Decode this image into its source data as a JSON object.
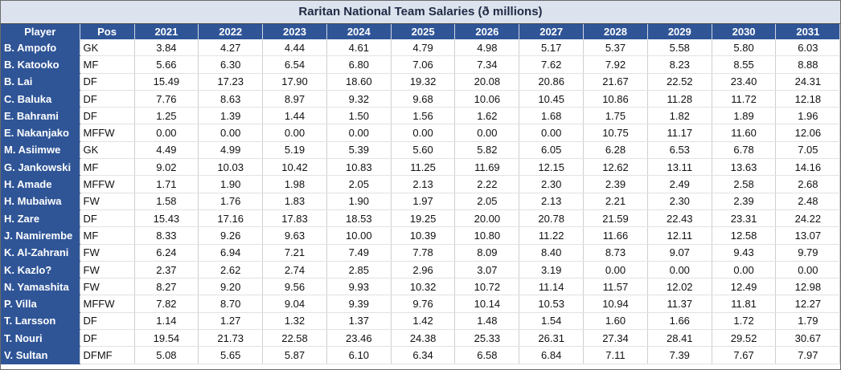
{
  "title": "Raritan National Team Salaries (ð millions)",
  "columns": [
    "Player",
    "Pos",
    "2021",
    "2022",
    "2023",
    "2024",
    "2025",
    "2026",
    "2027",
    "2028",
    "2029",
    "2030",
    "2031"
  ],
  "rows": [
    {
      "player": "B. Ampofo",
      "pos": "GK",
      "values": [
        "3.84",
        "4.27",
        "4.44",
        "4.61",
        "4.79",
        "4.98",
        "5.17",
        "5.37",
        "5.58",
        "5.80",
        "6.03"
      ]
    },
    {
      "player": "B. Katooko",
      "pos": "MF",
      "values": [
        "5.66",
        "6.30",
        "6.54",
        "6.80",
        "7.06",
        "7.34",
        "7.62",
        "7.92",
        "8.23",
        "8.55",
        "8.88"
      ]
    },
    {
      "player": "B. Lai",
      "pos": "DF",
      "values": [
        "15.49",
        "17.23",
        "17.90",
        "18.60",
        "19.32",
        "20.08",
        "20.86",
        "21.67",
        "22.52",
        "23.40",
        "24.31"
      ]
    },
    {
      "player": "C. Baluka",
      "pos": "DF",
      "values": [
        "7.76",
        "8.63",
        "8.97",
        "9.32",
        "9.68",
        "10.06",
        "10.45",
        "10.86",
        "11.28",
        "11.72",
        "12.18"
      ]
    },
    {
      "player": "E. Bahrami",
      "pos": "DF",
      "values": [
        "1.25",
        "1.39",
        "1.44",
        "1.50",
        "1.56",
        "1.62",
        "1.68",
        "1.75",
        "1.82",
        "1.89",
        "1.96"
      ]
    },
    {
      "player": "E. Nakanjako",
      "pos": "MFFW",
      "values": [
        "0.00",
        "0.00",
        "0.00",
        "0.00",
        "0.00",
        "0.00",
        "0.00",
        "10.75",
        "11.17",
        "11.60",
        "12.06"
      ]
    },
    {
      "player": "M. Asiimwe",
      "pos": "GK",
      "values": [
        "4.49",
        "4.99",
        "5.19",
        "5.39",
        "5.60",
        "5.82",
        "6.05",
        "6.28",
        "6.53",
        "6.78",
        "7.05"
      ]
    },
    {
      "player": "G. Jankowski",
      "pos": "MF",
      "values": [
        "9.02",
        "10.03",
        "10.42",
        "10.83",
        "11.25",
        "11.69",
        "12.15",
        "12.62",
        "13.11",
        "13.63",
        "14.16"
      ]
    },
    {
      "player": "H. Amade",
      "pos": "MFFW",
      "values": [
        "1.71",
        "1.90",
        "1.98",
        "2.05",
        "2.13",
        "2.22",
        "2.30",
        "2.39",
        "2.49",
        "2.58",
        "2.68"
      ]
    },
    {
      "player": "H. Mubaiwa",
      "pos": "FW",
      "values": [
        "1.58",
        "1.76",
        "1.83",
        "1.90",
        "1.97",
        "2.05",
        "2.13",
        "2.21",
        "2.30",
        "2.39",
        "2.48"
      ]
    },
    {
      "player": "H. Zare",
      "pos": "DF",
      "values": [
        "15.43",
        "17.16",
        "17.83",
        "18.53",
        "19.25",
        "20.00",
        "20.78",
        "21.59",
        "22.43",
        "23.31",
        "24.22"
      ]
    },
    {
      "player": "J. Namirembe",
      "pos": "MF",
      "values": [
        "8.33",
        "9.26",
        "9.63",
        "10.00",
        "10.39",
        "10.80",
        "11.22",
        "11.66",
        "12.11",
        "12.58",
        "13.07"
      ]
    },
    {
      "player": "K. Al-Zahrani",
      "pos": "FW",
      "values": [
        "6.24",
        "6.94",
        "7.21",
        "7.49",
        "7.78",
        "8.09",
        "8.40",
        "8.73",
        "9.07",
        "9.43",
        "9.79"
      ]
    },
    {
      "player": "K. Kazlo?",
      "pos": "FW",
      "values": [
        "2.37",
        "2.62",
        "2.74",
        "2.85",
        "2.96",
        "3.07",
        "3.19",
        "0.00",
        "0.00",
        "0.00",
        "0.00"
      ]
    },
    {
      "player": "N. Yamashita",
      "pos": "FW",
      "values": [
        "8.27",
        "9.20",
        "9.56",
        "9.93",
        "10.32",
        "10.72",
        "11.14",
        "11.57",
        "12.02",
        "12.49",
        "12.98"
      ]
    },
    {
      "player": "P. Villa",
      "pos": "MFFW",
      "values": [
        "7.82",
        "8.70",
        "9.04",
        "9.39",
        "9.76",
        "10.14",
        "10.53",
        "10.94",
        "11.37",
        "11.81",
        "12.27"
      ]
    },
    {
      "player": "T. Larsson",
      "pos": "DF",
      "values": [
        "1.14",
        "1.27",
        "1.32",
        "1.37",
        "1.42",
        "1.48",
        "1.54",
        "1.60",
        "1.66",
        "1.72",
        "1.79"
      ]
    },
    {
      "player": "T. Nouri",
      "pos": "DF",
      "values": [
        "19.54",
        "21.73",
        "22.58",
        "23.46",
        "24.38",
        "25.33",
        "26.31",
        "27.34",
        "28.41",
        "29.52",
        "30.67"
      ]
    },
    {
      "player": "V. Sultan",
      "pos": "DFMF",
      "values": [
        "5.08",
        "5.65",
        "5.87",
        "6.10",
        "6.34",
        "6.58",
        "6.84",
        "7.11",
        "7.39",
        "7.67",
        "7.97"
      ]
    }
  ]
}
